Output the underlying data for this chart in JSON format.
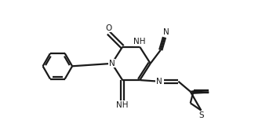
{
  "bg_color": "#ffffff",
  "line_color": "#1a1a1a",
  "line_width": 1.6,
  "figsize": [
    3.48,
    1.72
  ],
  "dpi": 100,
  "xlim": [
    0,
    10
  ],
  "ylim": [
    0,
    5
  ],
  "font_size": 7.5
}
